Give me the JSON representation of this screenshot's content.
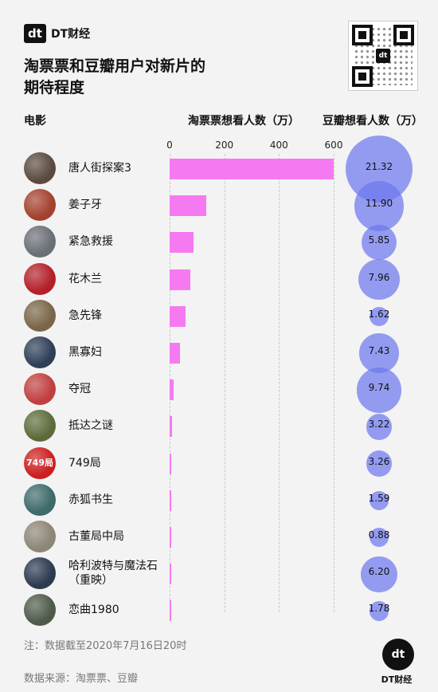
{
  "brand": {
    "logo_text": "dt",
    "name": "DT财经"
  },
  "title_lines": [
    "淘票票和豆瓣用户对新片的",
    "期待程度"
  ],
  "qr": {
    "center_text": "dt"
  },
  "headers": {
    "movie": "电影",
    "taopiaopiao": "淘票票想看人数（万）",
    "douban": "豆瓣想看人数（万）"
  },
  "colors": {
    "bar": "#f57af2",
    "bubble": "#6e78ee",
    "background": "#f3f3f3"
  },
  "chart_data": {
    "type": "bar",
    "categories": [
      "唐人街探案3",
      "姜子牙",
      "紧急救援",
      "花木兰",
      "急先锋",
      "黑寡妇",
      "夺冠",
      "抵达之谜",
      "749局",
      "赤狐书生",
      "古董局中局",
      "哈利波特与魔法石（重映）",
      "恋曲1980"
    ],
    "series": [
      {
        "name": "淘票票想看人数（万）",
        "values": [
          600,
          135,
          88,
          75,
          57,
          37,
          15,
          10,
          7,
          6,
          4,
          4,
          3
        ]
      },
      {
        "name": "豆瓣想看人数（万）",
        "values": [
          21.32,
          11.9,
          5.85,
          7.96,
          1.62,
          7.43,
          9.74,
          3.22,
          3.26,
          1.59,
          0.88,
          6.2,
          1.78
        ],
        "labels": [
          "21.32",
          "11.90",
          "5.85",
          "7.96",
          "1.62",
          "7.43",
          "9.74",
          "3.22",
          "3.26",
          "1.59",
          "0.88",
          "6.20",
          "1.78"
        ]
      }
    ],
    "xaxis_ticks": [
      "0",
      "200",
      "400",
      "600"
    ],
    "xlim": [
      0,
      600
    ]
  },
  "movies": [
    {
      "name_lines": [
        "唐人街探案3"
      ],
      "poster_icon": "poster-tangrenjie-icon",
      "color": "#5b4a3f"
    },
    {
      "name_lines": [
        "姜子牙"
      ],
      "poster_icon": "poster-jiangziya-icon",
      "color": "#a3412e"
    },
    {
      "name_lines": [
        "紧急救援"
      ],
      "poster_icon": "poster-jinjijiuyuan-icon",
      "color": "#6a6f76"
    },
    {
      "name_lines": [
        "花木兰"
      ],
      "poster_icon": "poster-mulan-icon",
      "color": "#b3202a"
    },
    {
      "name_lines": [
        "急先锋"
      ],
      "poster_icon": "poster-jixianfeng-icon",
      "color": "#7a6548"
    },
    {
      "name_lines": [
        "黑寡妇"
      ],
      "poster_icon": "poster-blackwidow-icon",
      "color": "#2e3f56"
    },
    {
      "name_lines": [
        "夺冠"
      ],
      "poster_icon": "poster-duoguan-icon",
      "color": "#c04040"
    },
    {
      "name_lines": [
        "抵达之谜"
      ],
      "poster_icon": "poster-didazhimi-icon",
      "color": "#5d6b3a"
    },
    {
      "name_lines": [
        "749局"
      ],
      "poster_icon": "poster-749ju-icon",
      "color": "#cc1f1f",
      "poster_text": "749局"
    },
    {
      "name_lines": [
        "赤狐书生"
      ],
      "poster_icon": "poster-chihushusheng-icon",
      "color": "#3d6a6a"
    },
    {
      "name_lines": [
        "古董局中局"
      ],
      "poster_icon": "poster-gudongju-icon",
      "color": "#8d8576"
    },
    {
      "name_lines": [
        "哈利波特与魔法石",
        "（重映）"
      ],
      "poster_icon": "poster-harrypotter-icon",
      "color": "#2b3a4f"
    },
    {
      "name_lines": [
        "恋曲1980"
      ],
      "poster_icon": "poster-lianqu1980-icon",
      "color": "#4d5a4a"
    }
  ],
  "note": "注：数据截至2020年7月16日20时",
  "source": "数据来源：淘票票、豆瓣",
  "footer_brand": {
    "logo_text": "dt",
    "name": "DT财经"
  }
}
